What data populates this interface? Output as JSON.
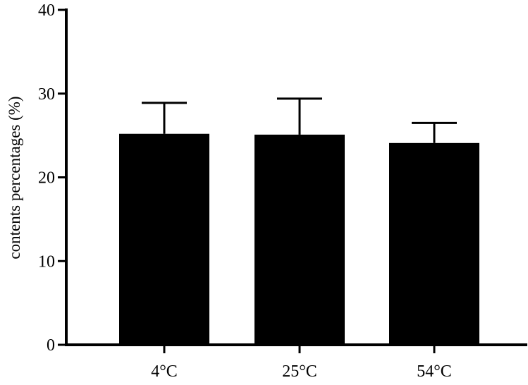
{
  "chart_data": {
    "type": "bar",
    "title": "",
    "xlabel": "",
    "ylabel": "contents percentages (%)",
    "categories": [
      "4°C",
      "25°C",
      "54°C"
    ],
    "values": [
      25.2,
      25.1,
      24.1
    ],
    "error_bars_upper": [
      28.9,
      29.4,
      26.5
    ],
    "ylim": [
      0,
      40
    ],
    "yticks": [
      "0",
      "10",
      "20",
      "30",
      "40"
    ],
    "grid": false,
    "legend": "none",
    "bar_color": "#000000",
    "axis_color": "#000000"
  }
}
